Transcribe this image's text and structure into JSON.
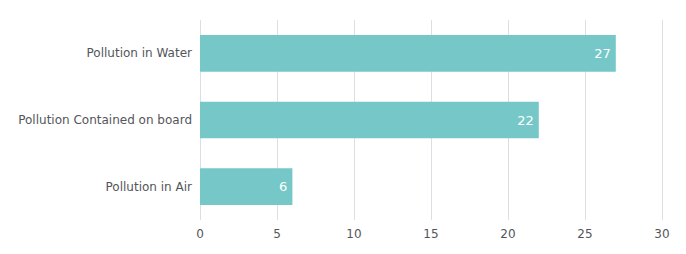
{
  "chart_data": {
    "type": "bar",
    "orientation": "horizontal",
    "categories": [
      "Pollution in Air",
      "Pollution Contained on board",
      "Pollution in Water"
    ],
    "values": [
      6,
      22,
      27
    ],
    "color": "#76C8C8",
    "xlim": [
      0,
      30
    ],
    "xticks": [
      0,
      5,
      10,
      15,
      20,
      25,
      30
    ],
    "grid": true,
    "data_labels": true
  }
}
